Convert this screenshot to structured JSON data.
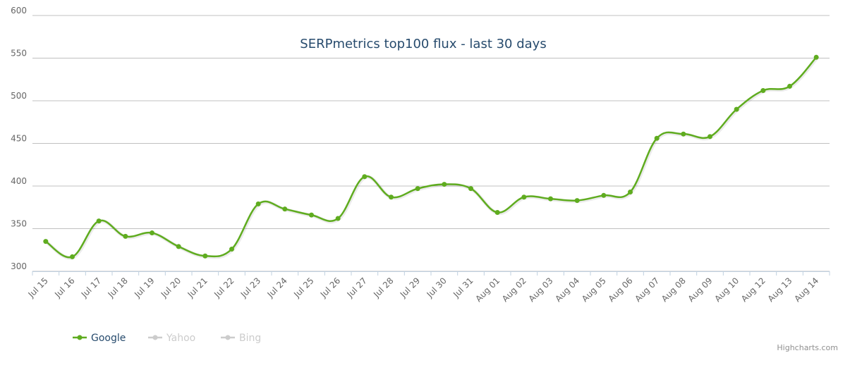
{
  "chart_data": {
    "type": "line",
    "title": "SERPmetrics top100 flux - last 30 days",
    "categories": [
      "Jul 15",
      "Jul 16",
      "Jul 17",
      "Jul 18",
      "Jul 19",
      "Jul 20",
      "Jul 21",
      "Jul 22",
      "Jul 23",
      "Jul 24",
      "Jul 25",
      "Jul 26",
      "Jul 27",
      "Jul 28",
      "Jul 29",
      "Jul 30",
      "Jul 31",
      "Aug 01",
      "Aug 02",
      "Aug 03",
      "Aug 04",
      "Aug 05",
      "Aug 06",
      "Aug 07",
      "Aug 08",
      "Aug 09",
      "Aug 10",
      "Aug 12",
      "Aug 13",
      "Aug 14"
    ],
    "series": [
      {
        "name": "Google",
        "color": "#5fac1f",
        "visible": true,
        "values": [
          335,
          317,
          359,
          341,
          345,
          329,
          318,
          326,
          379,
          373,
          366,
          362,
          411,
          387,
          397,
          402,
          397,
          369,
          387,
          385,
          383,
          389,
          393,
          456,
          461,
          458,
          490,
          512,
          517,
          551
        ]
      },
      {
        "name": "Yahoo",
        "color": "#cccccc",
        "visible": false
      },
      {
        "name": "Bing",
        "color": "#cccccc",
        "visible": false
      }
    ],
    "ylim": [
      300,
      600
    ],
    "yticks": [
      300,
      350,
      400,
      450,
      500,
      550,
      600
    ],
    "grid": true,
    "credits": "Highcharts.com"
  }
}
